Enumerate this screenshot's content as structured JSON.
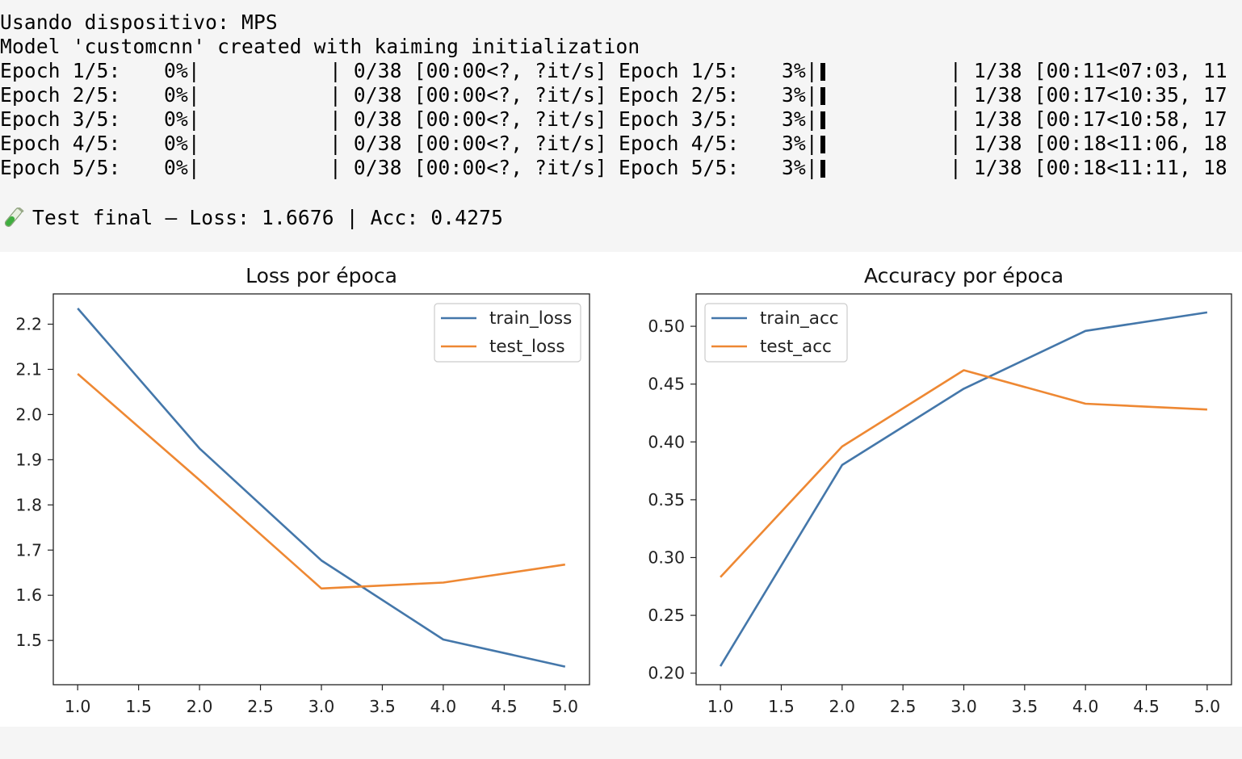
{
  "console": {
    "device_line": "Usando dispositivo: MPS",
    "model_line": "Model 'customcnn' created with kaiming initialization",
    "progress": [
      {
        "label": "Epoch 1/5:",
        "pct_a": "0%|",
        "count_a": "| 0/38 [00:00<?, ?it/s]",
        "label_b": "Epoch 1/5:",
        "pct_b": "3%|",
        "count_b": "| 1/38 [00:11<07:03, 11"
      },
      {
        "label": "Epoch 2/5:",
        "pct_a": "0%|",
        "count_a": "| 0/38 [00:00<?, ?it/s]",
        "label_b": "Epoch 2/5:",
        "pct_b": "3%|",
        "count_b": "| 1/38 [00:17<10:35, 17"
      },
      {
        "label": "Epoch 3/5:",
        "pct_a": "0%|",
        "count_a": "| 0/38 [00:00<?, ?it/s]",
        "label_b": "Epoch 3/5:",
        "pct_b": "3%|",
        "count_b": "| 1/38 [00:17<10:58, 17"
      },
      {
        "label": "Epoch 4/5:",
        "pct_a": "0%|",
        "count_a": "| 0/38 [00:00<?, ?it/s]",
        "label_b": "Epoch 4/5:",
        "pct_b": "3%|",
        "count_b": "| 1/38 [00:18<11:06, 18"
      },
      {
        "label": "Epoch 5/5:",
        "pct_a": "0%|",
        "count_a": "| 0/38 [00:00<?, ?it/s]",
        "label_b": "Epoch 5/5:",
        "pct_b": "3%|",
        "count_b": "| 1/38 [00:18<11:11, 18"
      }
    ],
    "test_icon": "test-tube-icon",
    "test_line": "Test final — Loss: 1.6676 | Acc: 0.4275"
  },
  "colors": {
    "train": "#4477aa",
    "test": "#ee8833"
  },
  "chart_data": [
    {
      "type": "line",
      "title": "Loss por época",
      "xlabel": "",
      "ylabel": "",
      "x": [
        1.0,
        2.0,
        3.0,
        4.0,
        5.0
      ],
      "series": [
        {
          "name": "train_loss",
          "values": [
            2.235,
            1.925,
            1.677,
            1.502,
            1.442
          ]
        },
        {
          "name": "test_loss",
          "values": [
            2.09,
            1.855,
            1.615,
            1.628,
            1.668
          ]
        }
      ],
      "xlim": [
        0.8,
        5.2
      ],
      "ylim": [
        1.402,
        2.267
      ],
      "xticks": [
        "1.0",
        "1.5",
        "2.0",
        "2.5",
        "3.0",
        "3.5",
        "4.0",
        "4.5",
        "5.0"
      ],
      "yticks": [
        "1.5",
        "1.6",
        "1.7",
        "1.8",
        "1.9",
        "2.0",
        "2.1",
        "2.2"
      ],
      "legend": "upper-right",
      "grid": false
    },
    {
      "type": "line",
      "title": "Accuracy por época",
      "xlabel": "",
      "ylabel": "",
      "x": [
        1.0,
        2.0,
        3.0,
        4.0,
        5.0
      ],
      "series": [
        {
          "name": "train_acc",
          "values": [
            0.206,
            0.38,
            0.446,
            0.496,
            0.512
          ]
        },
        {
          "name": "test_acc",
          "values": [
            0.283,
            0.396,
            0.462,
            0.433,
            0.428
          ]
        }
      ],
      "xlim": [
        0.8,
        5.2
      ],
      "ylim": [
        0.19,
        0.528
      ],
      "xticks": [
        "1.0",
        "1.5",
        "2.0",
        "2.5",
        "3.0",
        "3.5",
        "4.0",
        "4.5",
        "5.0"
      ],
      "yticks": [
        "0.20",
        "0.25",
        "0.30",
        "0.35",
        "0.40",
        "0.45",
        "0.50"
      ],
      "legend": "upper-left",
      "grid": false
    }
  ]
}
